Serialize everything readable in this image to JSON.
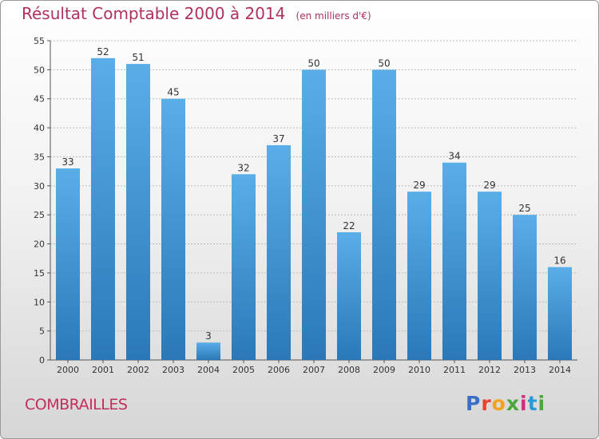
{
  "header": {
    "title": "Résultat Comptable 2000 à 2014",
    "unit": "(en milliers d'€)"
  },
  "footer": {
    "location": "COMBRAILLES",
    "logo_text": "Proxiti"
  },
  "colors": {
    "title": "#b03060",
    "bar_top": "#5aaee8",
    "bar_bottom": "#2a78b8",
    "grid": "#bbbbbb"
  },
  "chart_data": {
    "type": "bar",
    "title": "Résultat Comptable 2000 à 2014",
    "subtitle": "(en milliers d'€)",
    "xlabel": "",
    "ylabel": "",
    "categories": [
      "2000",
      "2001",
      "2002",
      "2003",
      "2004",
      "2005",
      "2006",
      "2007",
      "2008",
      "2009",
      "2010",
      "2011",
      "2012",
      "2013",
      "2014"
    ],
    "values": [
      33,
      52,
      51,
      45,
      3,
      32,
      37,
      50,
      22,
      50,
      29,
      34,
      29,
      25,
      16
    ],
    "ylim": [
      0,
      55
    ],
    "yticks": [
      0,
      5,
      10,
      15,
      20,
      25,
      30,
      35,
      40,
      45,
      50,
      55
    ],
    "grid": true,
    "legend": "none"
  }
}
